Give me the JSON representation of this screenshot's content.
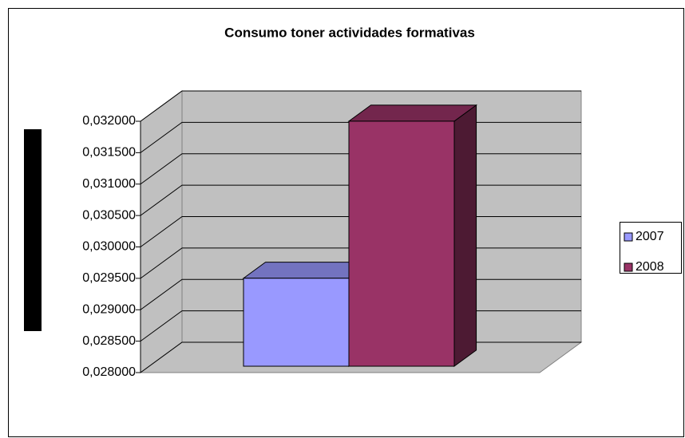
{
  "chart_data": {
    "type": "bar3d",
    "title": "Consumo toner actividades formativas",
    "series": [
      {
        "name": "2007",
        "color": "#9999ff",
        "values": [
          0.0294
        ]
      },
      {
        "name": "2008",
        "color": "#993366",
        "values": [
          0.0319
        ]
      }
    ],
    "ylim": [
      0.028,
      0.032
    ],
    "yticks": [
      {
        "value": 0.028,
        "label": "0,028000"
      },
      {
        "value": 0.0285,
        "label": "0,028500"
      },
      {
        "value": 0.029,
        "label": "0,029000"
      },
      {
        "value": 0.0295,
        "label": "0,029500"
      },
      {
        "value": 0.03,
        "label": "0,030000"
      },
      {
        "value": 0.0305,
        "label": "0,030500"
      },
      {
        "value": 0.031,
        "label": "0,031000"
      },
      {
        "value": 0.0315,
        "label": "0,031500"
      },
      {
        "value": 0.032,
        "label": "0,032000"
      }
    ],
    "grid": true,
    "legend": "right"
  }
}
